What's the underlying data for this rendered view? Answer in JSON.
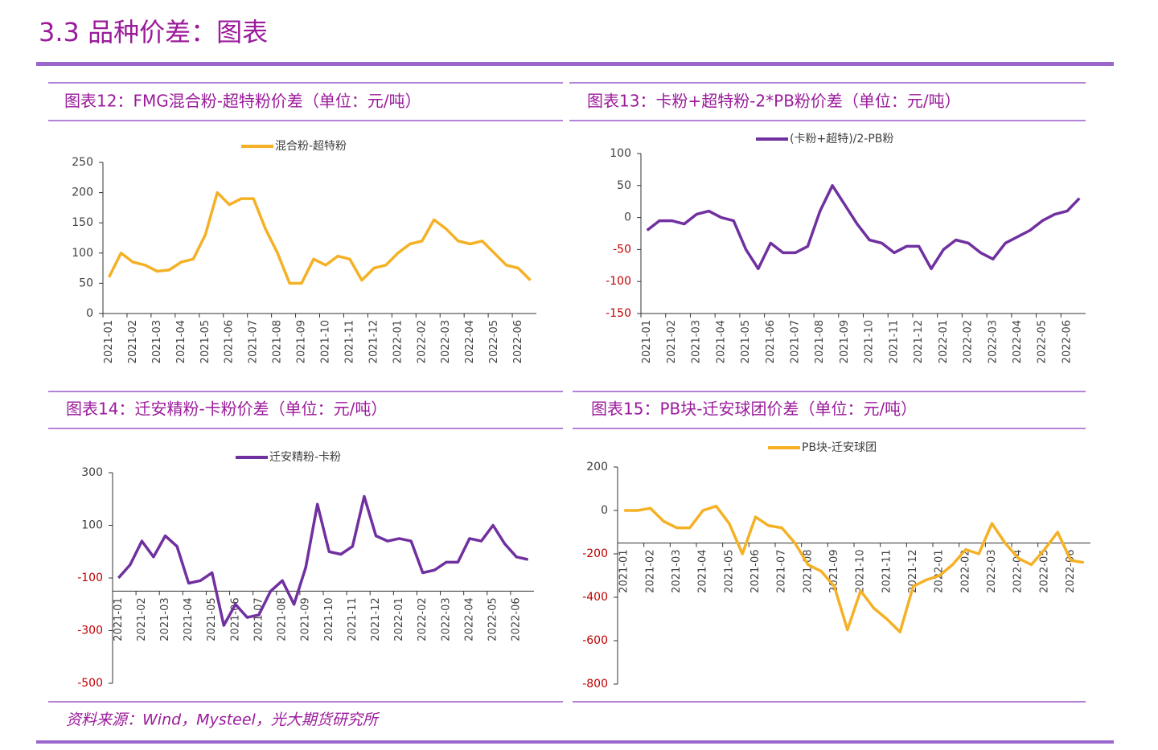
{
  "page_title": "3.3 品种价差：图表",
  "source": "资料来源：Wind，Mysteel，光大期货研究所",
  "chart_data": [
    {
      "type": "line",
      "title": "图表12：FMG混合粉-超特粉价差（单位：元/吨）",
      "categories": [
        "2021-01",
        null,
        "2021-02",
        null,
        "2021-03",
        null,
        "2021-04",
        null,
        "2021-05",
        null,
        "2021-06",
        null,
        "2021-07",
        null,
        "2021-08",
        null,
        "2021-09",
        null,
        "2021-10",
        null,
        "2021-11",
        null,
        "2021-12",
        null,
        "2022-01",
        null,
        "2022-02",
        null,
        "2022-03",
        null,
        "2022-04",
        null,
        "2022-05",
        null,
        "2022-06",
        null
      ],
      "series": [
        {
          "name": "混合粉-超特粉",
          "color": "#f5b125",
          "values": [
            60,
            100,
            85,
            80,
            70,
            72,
            85,
            90,
            130,
            200,
            180,
            190,
            190,
            140,
            100,
            50,
            50,
            90,
            80,
            95,
            90,
            55,
            75,
            80,
            100,
            115,
            120,
            155,
            140,
            120,
            115,
            120,
            100,
            80,
            75,
            55
          ]
        }
      ],
      "ylim": [
        0,
        250
      ],
      "yticks": [
        0,
        50,
        100,
        150,
        200,
        250
      ]
    },
    {
      "type": "line",
      "title": "图表13：卡粉+超特粉-2*PB粉价差（单位：元/吨）",
      "categories": [
        "2021-01",
        null,
        "2021-02",
        null,
        "2021-03",
        null,
        "2021-04",
        null,
        "2021-05",
        null,
        "2021-06",
        null,
        "2021-07",
        null,
        "2021-08",
        null,
        "2021-09",
        null,
        "2021-10",
        null,
        "2021-11",
        null,
        "2021-12",
        null,
        "2022-01",
        null,
        "2022-02",
        null,
        "2022-03",
        null,
        "2022-04",
        null,
        "2022-05",
        null,
        "2022-06",
        null
      ],
      "series": [
        {
          "name": "(卡粉+超特)/2-PB粉",
          "color": "#7030a0",
          "values": [
            -20,
            -5,
            -5,
            -10,
            5,
            10,
            0,
            -5,
            -50,
            -80,
            -40,
            -55,
            -55,
            -45,
            10,
            50,
            20,
            -10,
            -35,
            -40,
            -55,
            -45,
            -45,
            -80,
            -50,
            -35,
            -40,
            -55,
            -65,
            -40,
            -30,
            -20,
            -5,
            5,
            10,
            30
          ]
        }
      ],
      "ylim": [
        -150,
        100
      ],
      "yticks": [
        -150,
        -100,
        -50,
        0,
        50,
        100
      ],
      "negative_tick_color": "#c00000"
    },
    {
      "type": "line",
      "title": "图表14：迁安精粉-卡粉价差（单位：元/吨）",
      "categories": [
        "2021-01",
        null,
        "2021-02",
        null,
        "2021-03",
        null,
        "2021-04",
        null,
        "2021-05",
        null,
        "2021-06",
        null,
        "2021-07",
        null,
        "2021-08",
        null,
        "2021-09",
        null,
        "2021-10",
        null,
        "2021-11",
        null,
        "2021-12",
        null,
        "2022-01",
        null,
        "2022-02",
        null,
        "2022-03",
        null,
        "2022-04",
        null,
        "2022-05",
        null,
        "2022-06",
        null
      ],
      "series": [
        {
          "name": "迁安精粉-卡粉",
          "color": "#7030a0",
          "values": [
            -100,
            -50,
            40,
            -20,
            60,
            20,
            -120,
            -110,
            -80,
            -280,
            -200,
            -250,
            -240,
            -150,
            -110,
            -200,
            -60,
            180,
            0,
            -10,
            20,
            210,
            60,
            40,
            50,
            40,
            -80,
            -70,
            -40,
            -40,
            50,
            40,
            100,
            30,
            -20,
            -30
          ]
        }
      ],
      "ylim": [
        -500,
        300
      ],
      "yticks": [
        -500,
        -300,
        -100,
        100,
        300
      ],
      "xaxis_crosses": -150,
      "negative_tick_color": "#c00000"
    },
    {
      "type": "line",
      "title": "图表15：PB块-迁安球团价差（单位：元/吨）",
      "categories": [
        "2021-01",
        null,
        "2021-02",
        null,
        "2021-03",
        null,
        "2021-04",
        null,
        "2021-05",
        null,
        "2021-06",
        null,
        "2021-07",
        null,
        "2021-08",
        null,
        "2021-09",
        null,
        "2021-10",
        null,
        "2021-11",
        null,
        "2021-12",
        null,
        "2022-01",
        null,
        "2022-02",
        null,
        "2022-03",
        null,
        "2022-04",
        null,
        "2022-05",
        null,
        "2022-06",
        null
      ],
      "series": [
        {
          "name": "PB块-迁安球团",
          "color": "#f5b125",
          "values": [
            0,
            0,
            10,
            -50,
            -80,
            -80,
            0,
            20,
            -60,
            -200,
            -30,
            -70,
            -80,
            -150,
            -250,
            -280,
            -350,
            -550,
            -370,
            -450,
            -500,
            -560,
            -350,
            -320,
            -300,
            -250,
            -180,
            -200,
            -60,
            -150,
            -220,
            -250,
            -180,
            -100,
            -230,
            -240
          ]
        }
      ],
      "ylim": [
        -800,
        200
      ],
      "yticks": [
        -800,
        -600,
        -400,
        -200,
        0,
        200
      ],
      "xaxis_crosses": -150,
      "negative_tick_color": "#c00000"
    }
  ]
}
